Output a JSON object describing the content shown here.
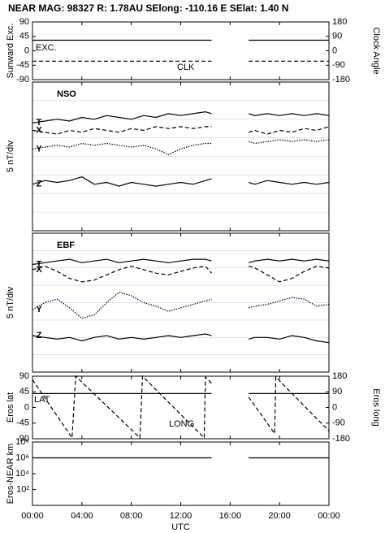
{
  "title": "NEAR MAG: 98327  R: 1.78AU  SElong: -110.16 E  SElat:    1.40 N",
  "chart_data": [
    {
      "type": "line",
      "ylabel": "Sunward Exc.",
      "y2label": "Clock Angle",
      "xlim": [
        0,
        24
      ],
      "ylim": [
        -90,
        90
      ],
      "yticks": [
        90,
        45,
        0,
        -45,
        -90
      ],
      "y2lim": [
        -180,
        180
      ],
      "y2ticks": [
        180,
        90,
        0,
        -90,
        -180
      ],
      "x": [
        0,
        14.5,
        16,
        17.5,
        24
      ],
      "series": [
        {
          "name": "EXC.",
          "color": "#000000",
          "style": "solid",
          "values": [
            33,
            33,
            null,
            33,
            33
          ]
        },
        {
          "name": "CLK",
          "color": "#000000",
          "style": "dashed",
          "axis": "y2",
          "values": [
            -65,
            -65,
            null,
            -65,
            -65
          ]
        }
      ]
    },
    {
      "type": "line",
      "label": "NSO",
      "ylabel": "5 nT/div",
      "xlim": [
        0,
        24
      ],
      "ylim": [
        0,
        8
      ],
      "ygrid": [
        1,
        2,
        3,
        4,
        5,
        6,
        7
      ],
      "x": [
        0,
        1,
        2,
        3,
        4,
        5,
        6,
        7,
        8,
        9,
        10,
        11,
        12,
        13,
        14,
        14.5,
        16,
        17.5,
        18,
        19,
        20,
        21,
        22,
        23,
        24
      ],
      "series": [
        {
          "name": "T",
          "color": "#000000",
          "style": "solid",
          "values": [
            5.8,
            5.9,
            6.0,
            5.9,
            6.1,
            6.0,
            6.2,
            6.1,
            6.0,
            6.2,
            6.1,
            6.3,
            6.2,
            6.3,
            6.4,
            6.3,
            null,
            6.3,
            6.2,
            6.3,
            6.2,
            6.3,
            6.2,
            6.3,
            6.2
          ]
        },
        {
          "name": "X",
          "color": "#000000",
          "style": "dashed",
          "values": [
            5.4,
            5.3,
            5.2,
            5.4,
            5.3,
            5.5,
            5.4,
            5.3,
            5.5,
            5.4,
            5.6,
            5.5,
            5.6,
            5.5,
            5.6,
            5.6,
            null,
            5.3,
            5.4,
            5.2,
            5.4,
            5.3,
            5.5,
            5.4,
            5.6
          ]
        },
        {
          "name": "Y",
          "color": "#000000",
          "style": "dotted",
          "values": [
            4.4,
            4.5,
            4.6,
            4.5,
            4.7,
            4.6,
            4.7,
            4.6,
            4.5,
            4.6,
            4.4,
            4.1,
            4.4,
            4.6,
            4.7,
            4.7,
            null,
            4.8,
            4.7,
            4.8,
            4.9,
            4.8,
            4.9,
            4.8,
            4.9
          ]
        },
        {
          "name": "Z",
          "color": "#000000",
          "style": "solid",
          "values": [
            2.5,
            2.7,
            2.6,
            2.7,
            2.9,
            2.5,
            2.6,
            2.4,
            2.6,
            2.5,
            2.4,
            2.5,
            2.6,
            2.5,
            2.7,
            2.8,
            null,
            2.6,
            2.5,
            2.7,
            2.6,
            2.5,
            2.6,
            2.5,
            2.6
          ]
        }
      ]
    },
    {
      "type": "line",
      "label": "EBF",
      "ylabel": "5 nT/div",
      "xlim": [
        0,
        24
      ],
      "ylim": [
        0,
        8
      ],
      "ygrid": [
        1,
        2,
        3,
        4,
        5,
        6,
        7
      ],
      "x": [
        0,
        1,
        2,
        3,
        4,
        5,
        6,
        7,
        8,
        9,
        10,
        11,
        12,
        13,
        14,
        14.5,
        16,
        17.5,
        18,
        19,
        20,
        21,
        22,
        23,
        24
      ],
      "series": [
        {
          "name": "T",
          "color": "#000000",
          "style": "solid",
          "values": [
            6.2,
            6.3,
            6.4,
            6.5,
            6.3,
            6.4,
            6.5,
            6.3,
            6.4,
            6.5,
            6.4,
            6.3,
            6.4,
            6.5,
            6.5,
            6.4,
            null,
            6.3,
            6.4,
            6.5,
            6.4,
            6.5,
            6.4,
            6.5,
            6.4
          ]
        },
        {
          "name": "X",
          "color": "#000000",
          "style": "dashed",
          "values": [
            5.9,
            6.1,
            5.8,
            5.4,
            5.2,
            5.3,
            5.6,
            5.9,
            6.1,
            5.9,
            5.7,
            5.6,
            5.8,
            6.0,
            6.1,
            5.7,
            null,
            6.1,
            6.0,
            5.6,
            5.2,
            5.4,
            5.8,
            6.1,
            6.0
          ]
        },
        {
          "name": "Y",
          "color": "#000000",
          "style": "dotted",
          "values": [
            3.6,
            4.0,
            4.2,
            3.7,
            3.1,
            3.3,
            4.0,
            4.6,
            4.4,
            4.0,
            3.8,
            3.5,
            3.7,
            3.9,
            4.1,
            4.2,
            null,
            3.7,
            3.8,
            3.9,
            4.1,
            4.3,
            4.2,
            3.8,
            3.9
          ]
        },
        {
          "name": "Z",
          "color": "#000000",
          "style": "solid",
          "values": [
            2.1,
            2.0,
            1.9,
            2.0,
            1.8,
            2.0,
            2.1,
            1.9,
            2.0,
            1.9,
            2.0,
            2.1,
            2.0,
            2.1,
            2.2,
            2.1,
            null,
            1.9,
            2.0,
            2.0,
            1.9,
            2.1,
            2.0,
            1.8,
            1.7
          ]
        }
      ]
    },
    {
      "type": "line",
      "ylabel": "Eros lat",
      "y2label": "Eros long",
      "xlim": [
        0,
        24
      ],
      "ylim": [
        -90,
        90
      ],
      "yticks": [
        90,
        45,
        0,
        -45,
        -90
      ],
      "y2lim": [
        -180,
        180
      ],
      "y2ticks": [
        180,
        90,
        0,
        -90,
        -180
      ],
      "x": [
        0,
        14.5,
        16,
        17.5,
        24
      ],
      "series": [
        {
          "name": "LAT",
          "color": "#000000",
          "style": "solid",
          "values": [
            40,
            40,
            null,
            40,
            40
          ]
        },
        {
          "name": "LONG",
          "color": "#000000",
          "style": "dashed",
          "axis": "y2",
          "x": [
            0,
            3.2,
            3.5,
            8.7,
            8.9,
            13.9,
            14.0,
            14.5,
            16,
            17.5,
            19.6,
            19.7,
            24
          ],
          "values": [
            160,
            -175,
            180,
            -175,
            180,
            -175,
            175,
            140,
            null,
            60,
            -150,
            175,
            -135
          ]
        }
      ]
    },
    {
      "type": "line",
      "ylabel": "Eros-NEAR km",
      "xlabel": "UTC",
      "log": true,
      "xlim": [
        0,
        24
      ],
      "ylim": [
        1,
        100000000
      ],
      "yticks": [
        {
          "value": 100000000,
          "label": "10⁸"
        },
        {
          "value": 1000000,
          "label": "10⁶"
        },
        {
          "value": 10000,
          "label": "10⁴"
        },
        {
          "value": 100,
          "label": "10²"
        }
      ],
      "xticks": [
        {
          "value": 0,
          "label": "00:00"
        },
        {
          "value": 4,
          "label": "04:00"
        },
        {
          "value": 8,
          "label": "08:00"
        },
        {
          "value": 12,
          "label": "12:00"
        },
        {
          "value": 16,
          "label": "16:00"
        },
        {
          "value": 20,
          "label": "20:00"
        },
        {
          "value": 24,
          "label": "00:00"
        }
      ],
      "x": [
        0,
        14.5,
        16,
        17.5,
        24
      ],
      "series": [
        {
          "color": "#000000",
          "style": "solid",
          "values": [
            1000000,
            1000000,
            null,
            1000000,
            1000000
          ]
        }
      ]
    }
  ]
}
